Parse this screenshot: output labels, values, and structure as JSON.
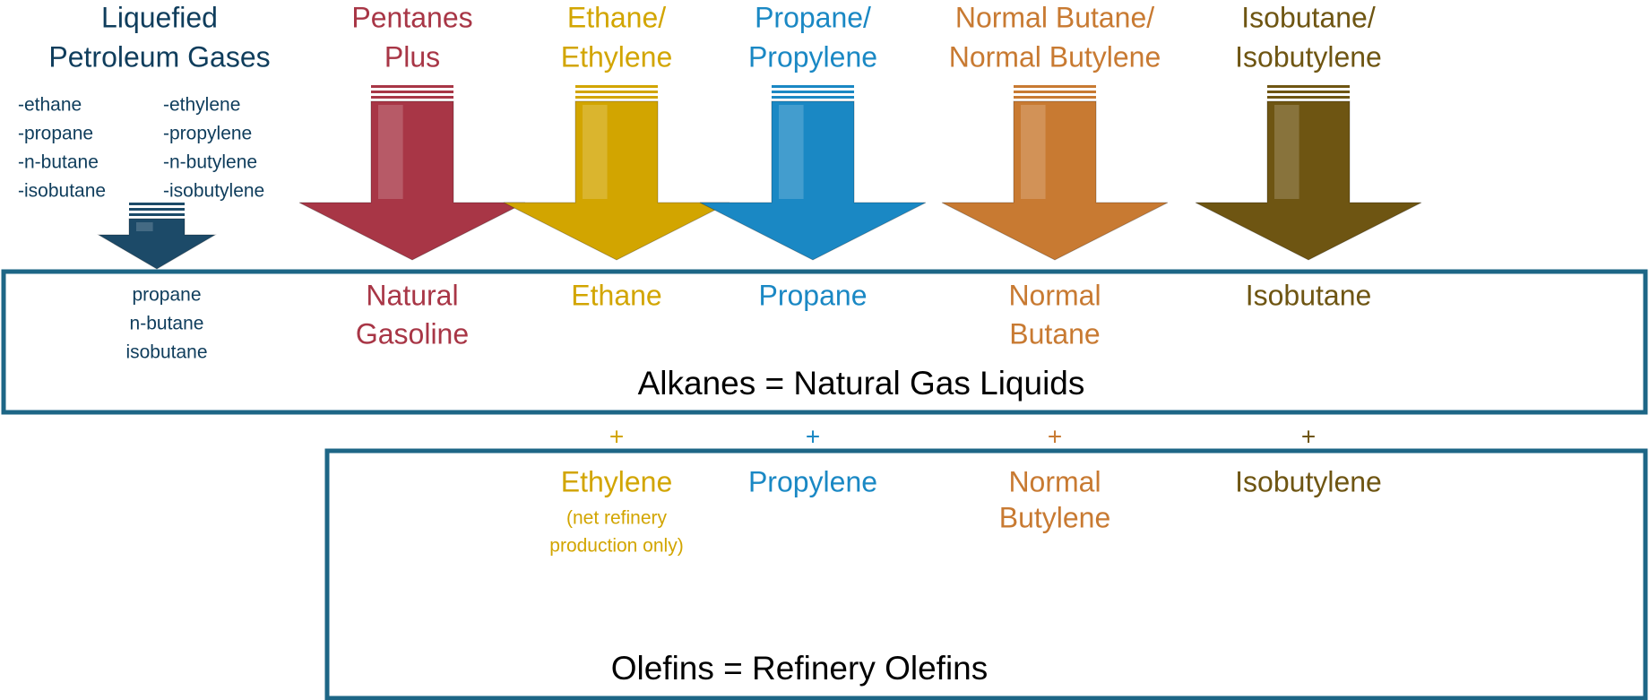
{
  "lpg": {
    "title": [
      "Liquefied",
      "Petroleum Gases"
    ],
    "color": "#0f3d5c",
    "arrow_color": "#1c4a68",
    "alkanes": [
      "-ethane",
      "-propane",
      "-n-butane",
      "-isobutane"
    ],
    "olefins": [
      "-ethylene",
      "-propylene",
      "-n-butylene",
      "-isobutylene"
    ],
    "outputs": [
      "propane",
      "n-butane",
      "isobutane"
    ]
  },
  "columns": [
    {
      "header": [
        "Pentanes",
        "Plus"
      ],
      "color": "#a83646",
      "alkane": [
        "Natural",
        "Gasoline"
      ]
    },
    {
      "header": [
        "Ethane/",
        "Ethylene"
      ],
      "color": "#d2a500",
      "alkane": [
        "Ethane"
      ],
      "plus": "+",
      "olefin": [
        "Ethylene"
      ],
      "olefin_note": [
        "(net refinery",
        "production only)"
      ]
    },
    {
      "header": [
        "Propane/",
        "Propylene"
      ],
      "color": "#1a88c4",
      "alkane": [
        "Propane"
      ],
      "plus": "+",
      "olefin": [
        "Propylene"
      ]
    },
    {
      "header": [
        "Normal Butane/",
        "Normal Butylene"
      ],
      "color": "#c87a32",
      "alkane": [
        "Normal",
        "Butane"
      ],
      "plus": "+",
      "olefin": [
        "Normal",
        "Butylene"
      ]
    },
    {
      "header": [
        "Isobutane/",
        "Isobutylene"
      ],
      "color": "#6e5512",
      "alkane": [
        "Isobutane"
      ],
      "plus": "+",
      "olefin": [
        "Isobutylene"
      ]
    }
  ],
  "alkanes_box": {
    "label": "Alkanes = Natural Gas Liquids"
  },
  "olefins_box": {
    "label": "Olefins = Refinery Olefins"
  }
}
